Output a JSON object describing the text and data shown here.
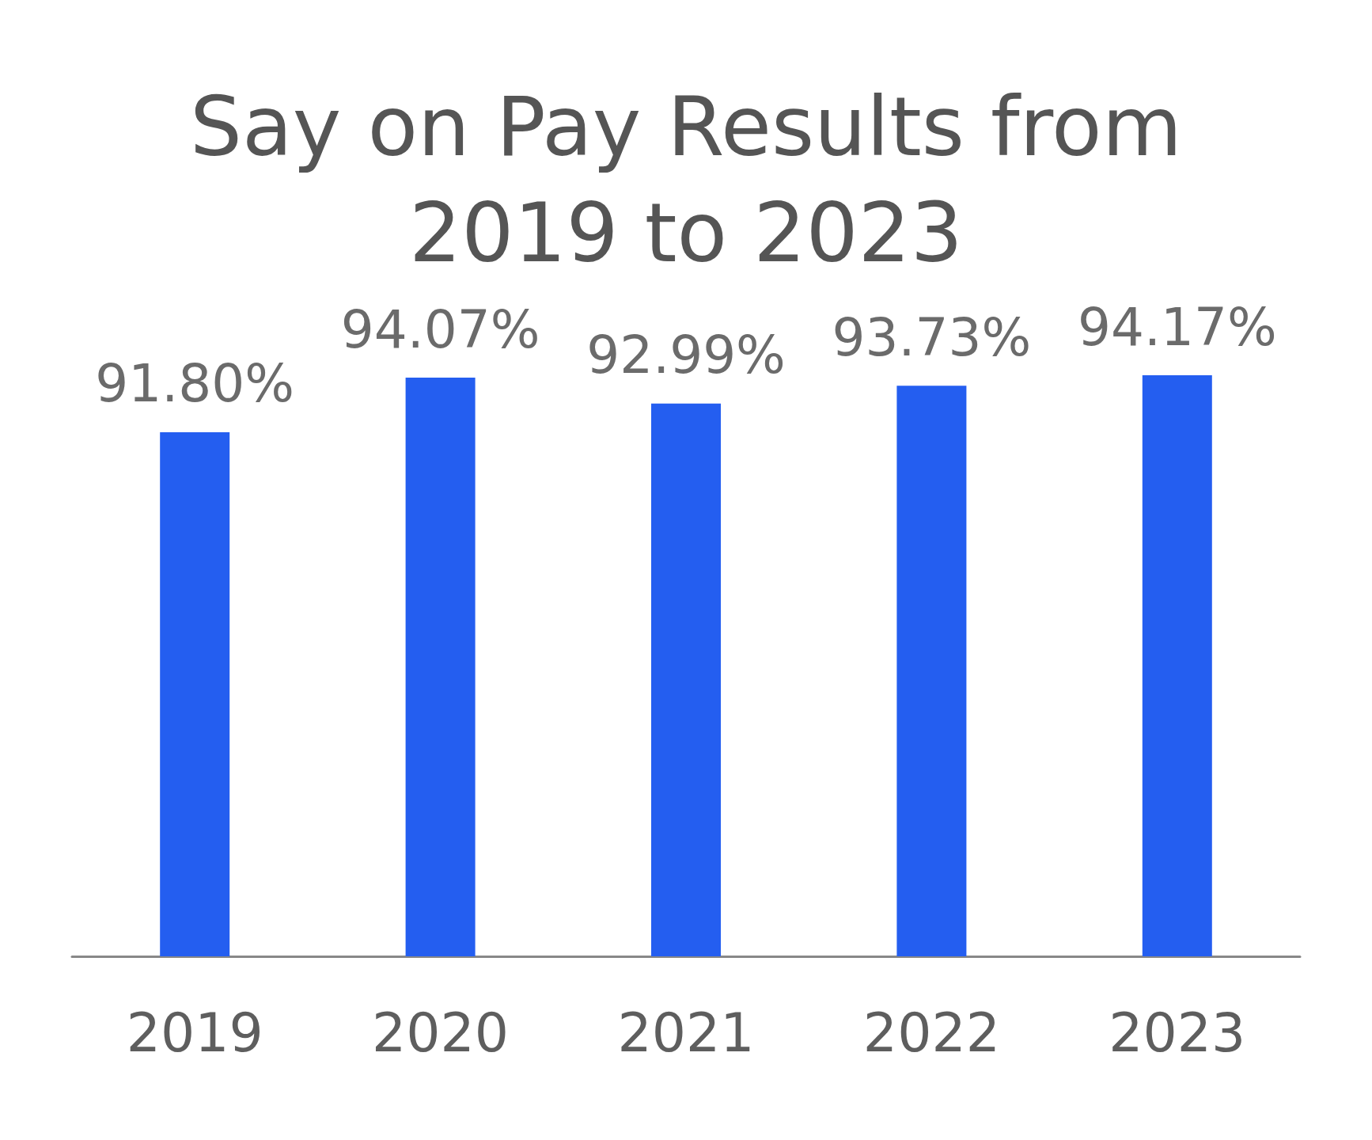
{
  "chart_data": {
    "type": "bar",
    "title": "Say on Pay Results from\n2019 to 2023",
    "categories": [
      "2019",
      "2020",
      "2021",
      "2022",
      "2023"
    ],
    "values": [
      91.8,
      94.07,
      92.99,
      93.73,
      94.17
    ],
    "value_labels": [
      "91.80%",
      "94.07%",
      "92.99%",
      "93.73%",
      "94.17%"
    ],
    "color": "#245ef0",
    "ylim": [
      70,
      94.17
    ],
    "tick_labels": "x"
  }
}
